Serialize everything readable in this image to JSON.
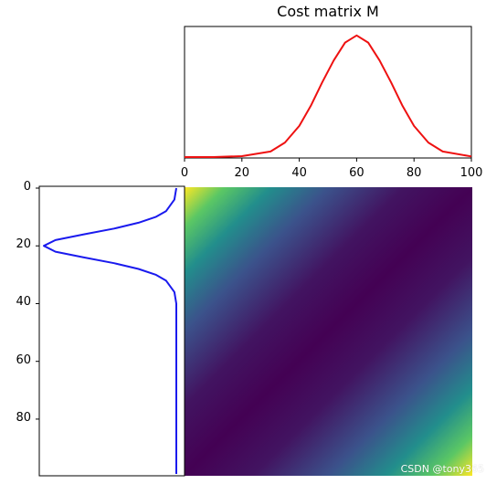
{
  "chart_data": [
    {
      "type": "line",
      "panel": "top",
      "title": "Cost matrix M",
      "x_ticks": [
        "0",
        "20",
        "40",
        "60",
        "80",
        "100"
      ],
      "xlim": [
        0,
        100
      ],
      "ylim": [
        0,
        0.042
      ],
      "series": [
        {
          "color": "#ee1111",
          "x": [
            0,
            10,
            20,
            30,
            35,
            40,
            44,
            48,
            52,
            56,
            60,
            64,
            68,
            72,
            76,
            80,
            85,
            90,
            100
          ],
          "y": [
            0.0,
            0.0,
            0.0003,
            0.0018,
            0.0047,
            0.0101,
            0.0166,
            0.0242,
            0.0313,
            0.0371,
            0.0394,
            0.0371,
            0.0313,
            0.0242,
            0.0166,
            0.0101,
            0.0047,
            0.0018,
            0.0002
          ]
        }
      ]
    },
    {
      "type": "line",
      "panel": "left",
      "orientation": "vertical",
      "y_ticks": [
        "0",
        "20",
        "40",
        "60",
        "80"
      ],
      "ylim": [
        0,
        99
      ],
      "series": [
        {
          "color": "#1a1aee",
          "y": [
            0,
            4,
            8,
            10,
            12,
            14,
            16,
            18,
            20,
            22,
            24,
            26,
            28,
            30,
            32,
            36,
            40,
            60,
            80,
            99
          ],
          "x": [
            0.0,
            0.0006,
            0.0033,
            0.0066,
            0.0121,
            0.0199,
            0.0296,
            0.0387,
            0.0424,
            0.0387,
            0.0296,
            0.0199,
            0.0121,
            0.0066,
            0.0033,
            0.0006,
            0.0,
            0.0,
            0.0,
            0.0
          ]
        }
      ]
    },
    {
      "type": "heatmap",
      "panel": "matrix",
      "rows": 100,
      "cols": 100,
      "formula": "(i - j)^2",
      "colormap": "viridis",
      "colormap_colors": [
        "#440154",
        "#3b528b",
        "#21918c",
        "#5ec962",
        "#fde725"
      ]
    }
  ],
  "watermark": "CSDN @tony365"
}
